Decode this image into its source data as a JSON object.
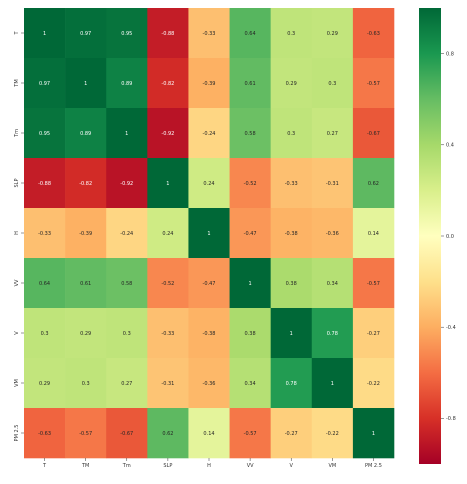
{
  "chart_data": {
    "type": "heatmap",
    "title": "",
    "xlabel": "",
    "ylabel": "",
    "row_labels": [
      "T",
      "TM",
      "Tm",
      "SLP",
      "H",
      "VV",
      "V",
      "VM",
      "PM 2.5"
    ],
    "col_labels": [
      "T",
      "TM",
      "Tm",
      "SLP",
      "H",
      "VV",
      "V",
      "VM",
      "PM 2.5"
    ],
    "values": [
      [
        1,
        0.97,
        0.95,
        -0.88,
        -0.33,
        0.64,
        0.3,
        0.29,
        -0.63
      ],
      [
        0.97,
        1,
        0.89,
        -0.82,
        -0.39,
        0.61,
        0.29,
        0.3,
        -0.57
      ],
      [
        0.95,
        0.89,
        1,
        -0.92,
        -0.24,
        0.58,
        0.3,
        0.27,
        -0.67
      ],
      [
        -0.88,
        -0.82,
        -0.92,
        1,
        0.24,
        -0.52,
        -0.33,
        -0.31,
        0.62
      ],
      [
        -0.33,
        -0.39,
        -0.24,
        0.24,
        1,
        -0.47,
        -0.38,
        -0.36,
        0.14
      ],
      [
        0.64,
        0.61,
        0.58,
        -0.52,
        -0.47,
        1,
        0.38,
        0.34,
        -0.57
      ],
      [
        0.3,
        0.29,
        0.3,
        -0.33,
        -0.38,
        0.38,
        1,
        0.78,
        -0.27
      ],
      [
        0.29,
        0.3,
        0.27,
        -0.31,
        -0.36,
        0.34,
        0.78,
        1,
        -0.22
      ],
      [
        -0.63,
        -0.57,
        -0.67,
        0.62,
        0.14,
        -0.57,
        -0.27,
        -0.22,
        1
      ]
    ],
    "vmin": -1,
    "vmax": 1,
    "colormap": "RdYlGn",
    "colorbar_ticks": [
      0.8,
      0.4,
      0.0,
      -0.4,
      -0.8
    ],
    "colorbar_tick_labels": [
      "0.8",
      "0.4",
      "0.0",
      "-0.4",
      "-0.8"
    ],
    "annotated": true
  }
}
